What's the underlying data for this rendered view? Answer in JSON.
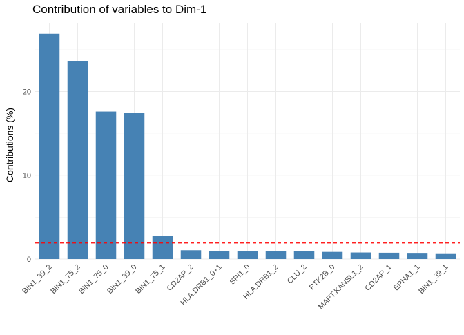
{
  "chart_data": {
    "type": "bar",
    "title": "Contribution of variables to Dim-1",
    "xlabel": "",
    "ylabel": "Contributions (%)",
    "categories": [
      "BIN1_39_2",
      "BIN1_75_2",
      "BIN1_75_0",
      "BIN1_39_0",
      "BIN1_75_1",
      "CD2AP_2",
      "HLA.DRB1_0+1",
      "SPI1_0",
      "HLA.DRB1_2",
      "CLU_2",
      "PTK2B_0",
      "MAPT.KANSL1_2",
      "CD2AP_1",
      "EPHA1_1",
      "BIN1_39_1"
    ],
    "values": [
      26.9,
      23.6,
      17.6,
      17.4,
      2.8,
      1.05,
      0.95,
      0.95,
      0.93,
      0.92,
      0.85,
      0.78,
      0.75,
      0.65,
      0.6
    ],
    "ylim": [
      0,
      28.2
    ],
    "yticks": [
      0,
      10,
      20
    ],
    "reference_line": 1.92,
    "grid": true,
    "legend": "none",
    "colors": {
      "bar": "#4682b4",
      "reference_line": "#ff0000",
      "grid": "#ebebeb"
    }
  }
}
